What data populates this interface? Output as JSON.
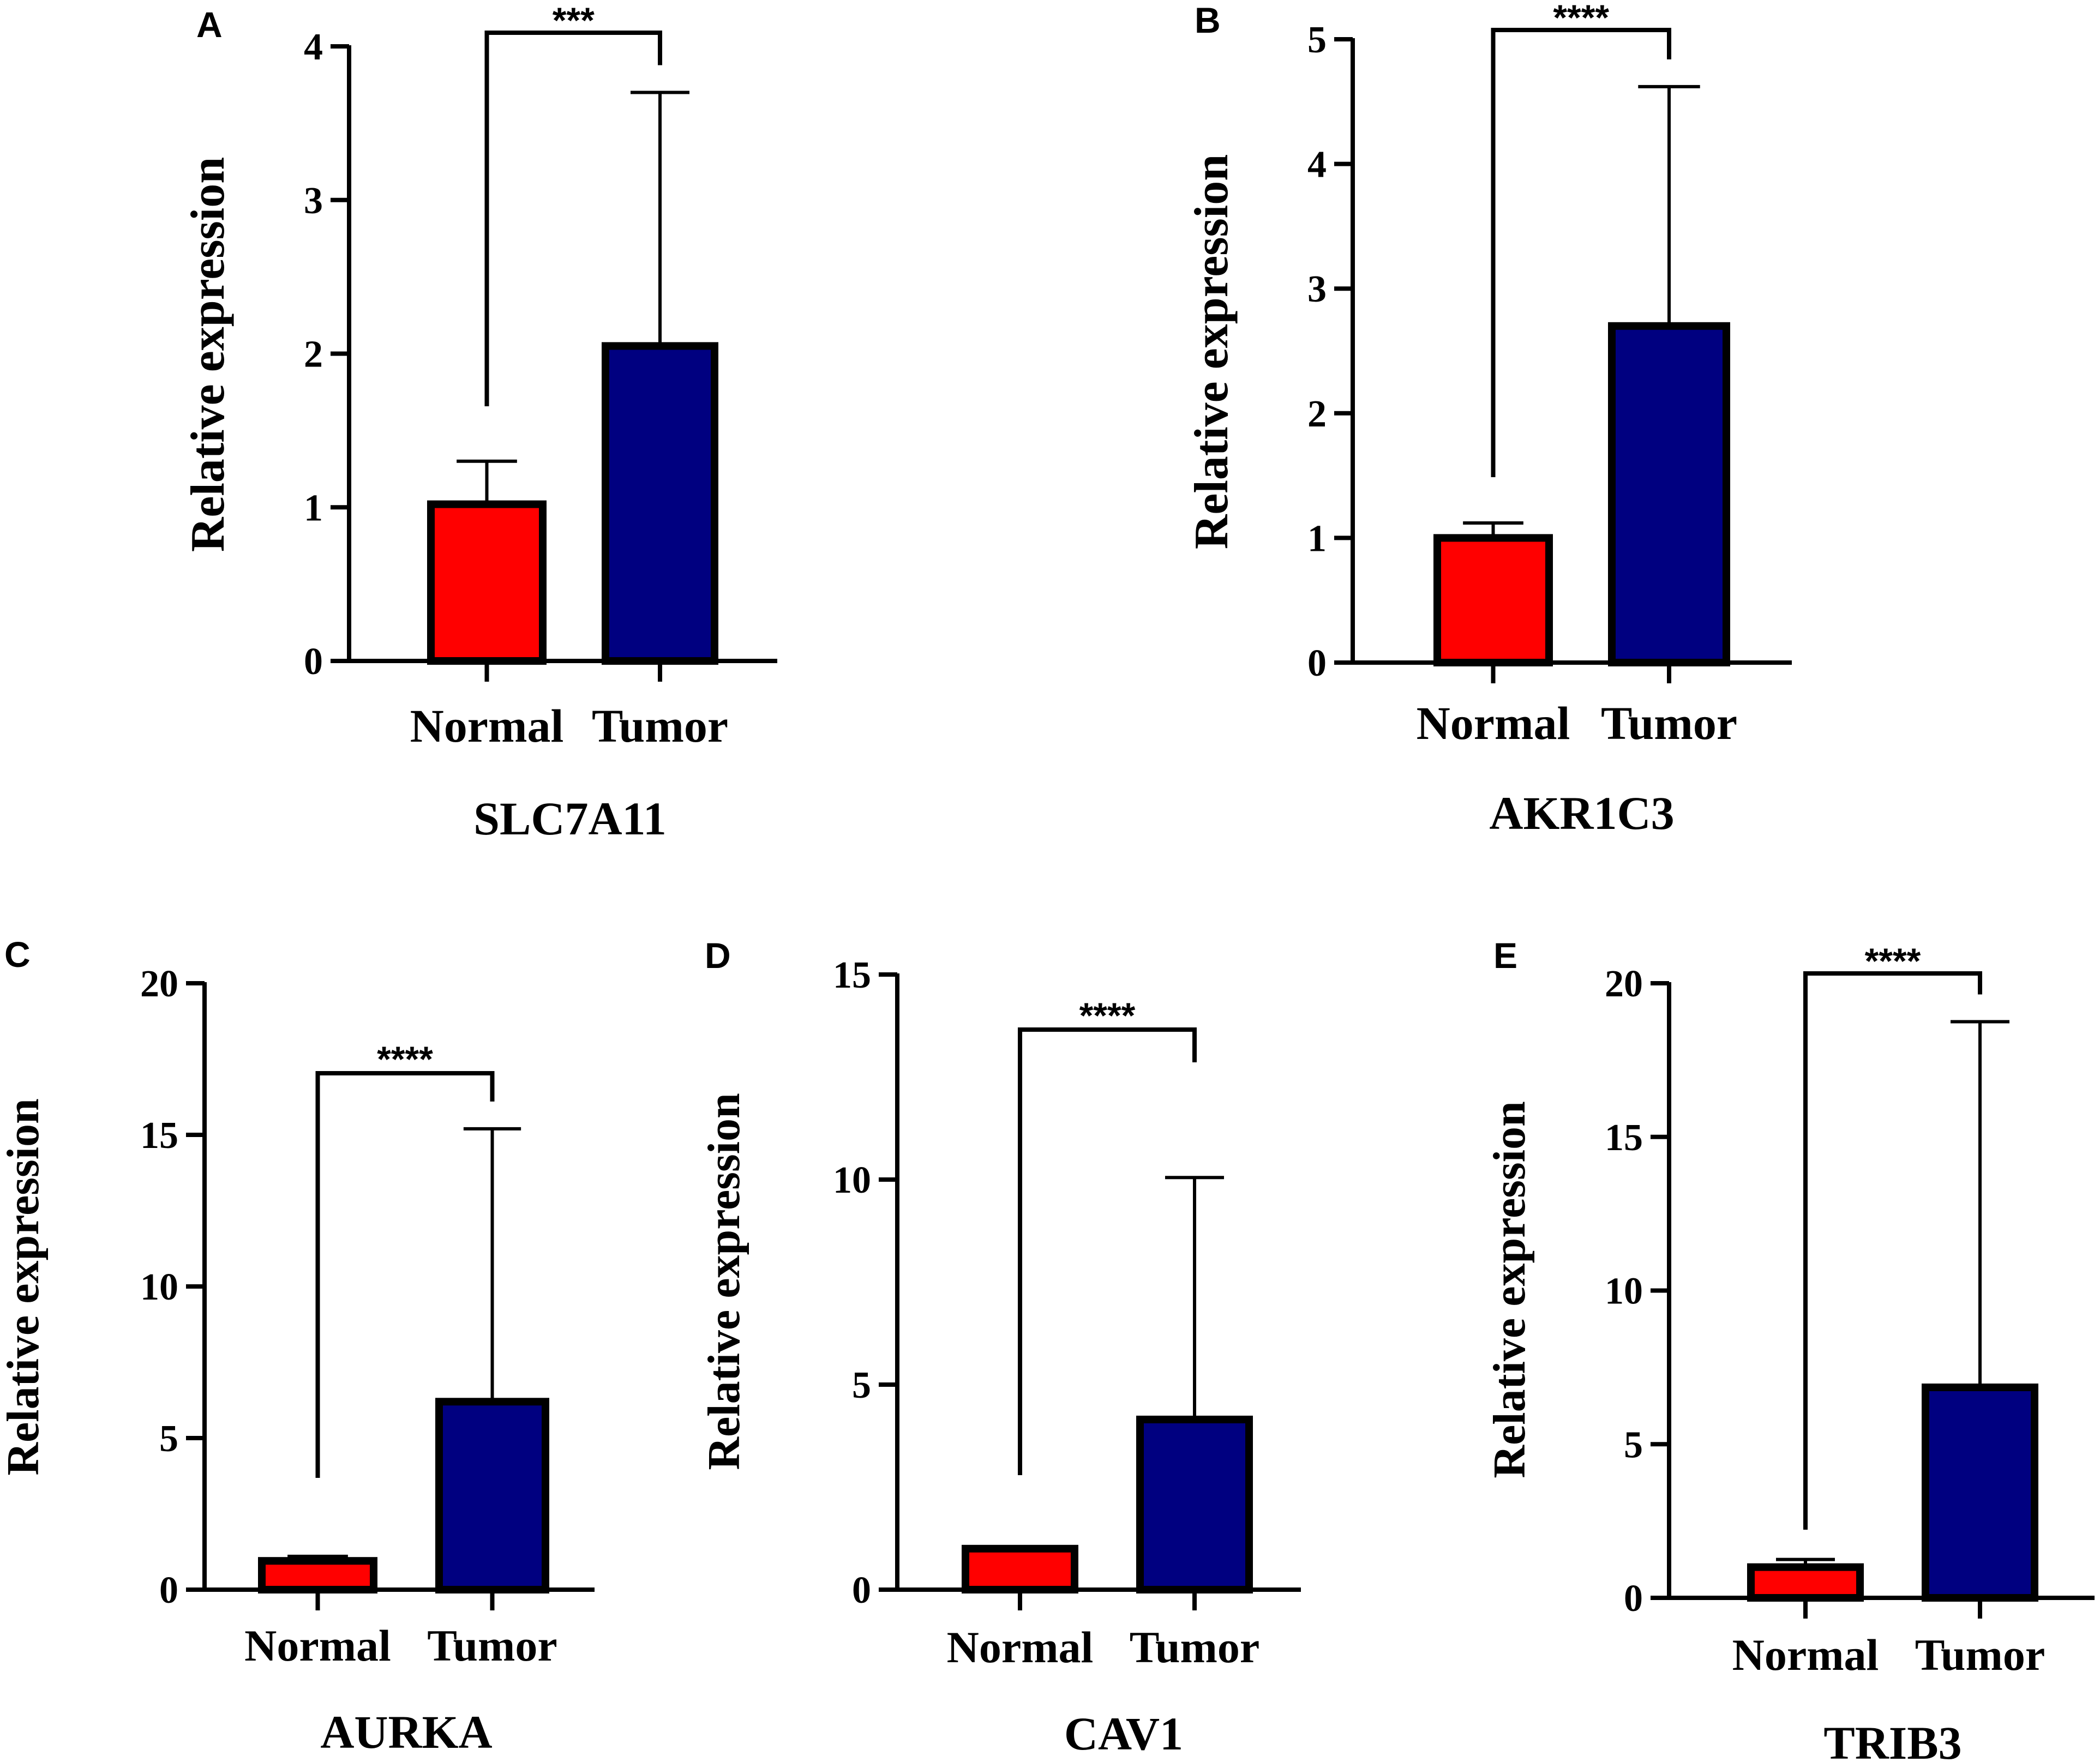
{
  "chart_data": [
    {
      "panel": "A",
      "type": "bar",
      "title": "SLC7A11",
      "ylabel": "Relative expression",
      "categories": [
        "Normal",
        "Tumor"
      ],
      "values": [
        1.02,
        2.05
      ],
      "error_upper": [
        1.3,
        3.7
      ],
      "ylim": [
        0,
        4
      ],
      "yticks": [
        0,
        1,
        2,
        3,
        4
      ],
      "significance": "***",
      "colors": [
        "#ff0000",
        "#000080"
      ]
    },
    {
      "panel": "B",
      "type": "bar",
      "title": "AKR1C3",
      "ylabel": "Relative expression",
      "categories": [
        "Normal",
        "Tumor"
      ],
      "values": [
        1.0,
        2.7
      ],
      "error_upper": [
        1.12,
        4.62
      ],
      "ylim": [
        0,
        5
      ],
      "yticks": [
        0,
        1,
        2,
        3,
        4,
        5
      ],
      "significance": "****",
      "colors": [
        "#ff0000",
        "#000080"
      ]
    },
    {
      "panel": "C",
      "type": "bar",
      "title": "AURKA",
      "ylabel": "Relative expression",
      "categories": [
        "Normal",
        "Tumor"
      ],
      "values": [
        0.95,
        6.2
      ],
      "error_upper": [
        1.1,
        15.2
      ],
      "ylim": [
        0,
        20
      ],
      "yticks": [
        0,
        5,
        10,
        15,
        20
      ],
      "significance": "****",
      "colors": [
        "#ff0000",
        "#000080"
      ]
    },
    {
      "panel": "D",
      "type": "bar",
      "title": "CAV1",
      "ylabel": "Relative expression",
      "categories": [
        "Normal",
        "Tumor"
      ],
      "values": [
        1.0,
        4.15
      ],
      "error_upper": [
        1.05,
        10.05
      ],
      "ylim": [
        0,
        15
      ],
      "yticks": [
        0,
        5,
        10,
        15
      ],
      "significance": "****",
      "colors": [
        "#ff0000",
        "#000080"
      ]
    },
    {
      "panel": "E",
      "type": "bar",
      "title": "TRIB3",
      "ylabel": "Relative expression",
      "categories": [
        "Normal",
        "Tumor"
      ],
      "values": [
        1.0,
        6.85
      ],
      "error_upper": [
        1.25,
        18.75
      ],
      "ylim": [
        0,
        20
      ],
      "yticks": [
        0,
        5,
        10,
        15,
        20
      ],
      "significance": "****",
      "colors": [
        "#ff0000",
        "#000080"
      ]
    }
  ]
}
